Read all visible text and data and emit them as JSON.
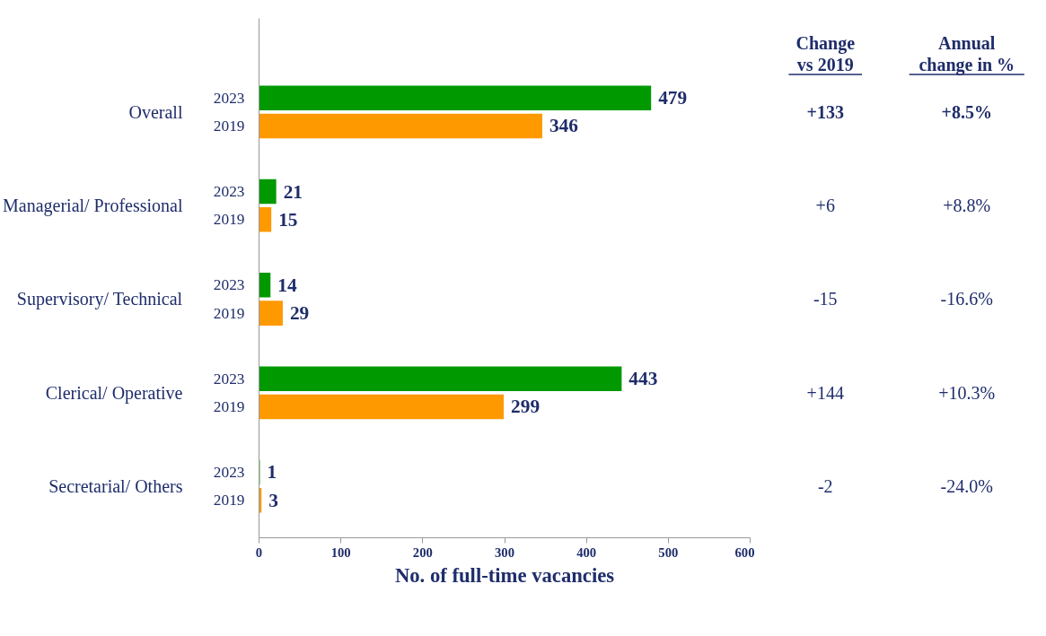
{
  "chart_data": {
    "type": "bar",
    "orientation": "horizontal",
    "categories": [
      "Overall",
      "Managerial/ Professional",
      "Supervisory/ Technical",
      "Clerical/ Operative",
      "Secretarial/ Others"
    ],
    "series": [
      {
        "name": "2023",
        "color": "#009900",
        "values": [
          479,
          21,
          14,
          443,
          1
        ]
      },
      {
        "name": "2019",
        "color": "#ff9900",
        "values": [
          346,
          15,
          29,
          299,
          3
        ]
      }
    ],
    "xlim": [
      0,
      600
    ],
    "xticks": [
      0,
      100,
      200,
      300,
      400,
      500,
      600
    ],
    "xlabel": "No. of full-time vacancies",
    "data_labels": true,
    "grid": false,
    "annotations": [
      "Change vs 2019",
      "Annual change in %",
      "+133",
      "+8.5%",
      "+6",
      "+8.8%",
      "-15",
      "-16.6%",
      "+144",
      "+10.3%",
      "-2",
      "-24.0%"
    ]
  }
}
